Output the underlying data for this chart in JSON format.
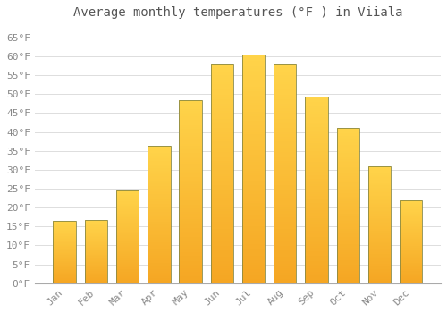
{
  "title": "Average monthly temperatures (°F ) in Viiala",
  "months": [
    "Jan",
    "Feb",
    "Mar",
    "Apr",
    "May",
    "Jun",
    "Jul",
    "Aug",
    "Sep",
    "Oct",
    "Nov",
    "Dec"
  ],
  "values": [
    16.5,
    16.7,
    24.5,
    36.3,
    48.5,
    57.8,
    60.5,
    57.8,
    49.3,
    41.0,
    30.8,
    22.0
  ],
  "bar_color_top": "#FFD44A",
  "bar_color_bottom": "#F5A623",
  "bar_edge_color": "#888844",
  "background_color": "#FFFFFF",
  "grid_color": "#DDDDDD",
  "ylim": [
    0,
    68
  ],
  "yticks": [
    0,
    5,
    10,
    15,
    20,
    25,
    30,
    35,
    40,
    45,
    50,
    55,
    60,
    65
  ],
  "ytick_labels": [
    "0°F",
    "5°F",
    "10°F",
    "15°F",
    "20°F",
    "25°F",
    "30°F",
    "35°F",
    "40°F",
    "45°F",
    "50°F",
    "55°F",
    "60°F",
    "65°F"
  ],
  "title_fontsize": 10,
  "tick_fontsize": 8,
  "font_family": "monospace"
}
